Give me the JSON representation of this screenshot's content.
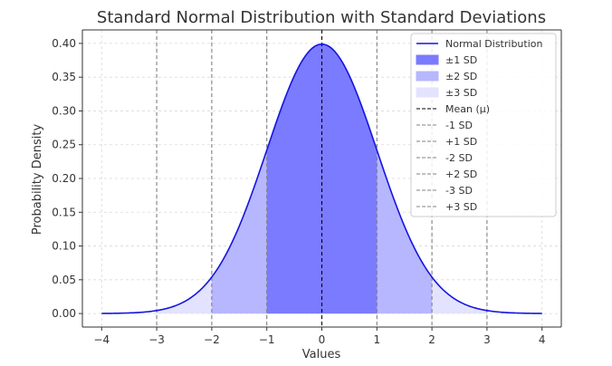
{
  "chart_data": {
    "type": "line",
    "title": "Standard Normal Distribution with Standard Deviations",
    "xlabel": "Values",
    "ylabel": "Probability Density",
    "xlim": [
      -4.35,
      4.35
    ],
    "ylim": [
      -0.02,
      0.42
    ],
    "x_ticks": [
      -4,
      -3,
      -2,
      -1,
      0,
      1,
      2,
      3,
      4
    ],
    "x_tick_labels": [
      "−4",
      "−3",
      "−2",
      "−1",
      "0",
      "1",
      "2",
      "3",
      "4"
    ],
    "y_ticks": [
      0.0,
      0.05,
      0.1,
      0.15,
      0.2,
      0.25,
      0.3,
      0.35,
      0.4
    ],
    "y_tick_labels": [
      "0.00",
      "0.05",
      "0.10",
      "0.15",
      "0.20",
      "0.25",
      "0.30",
      "0.35",
      "0.40"
    ],
    "grid": true,
    "legend_position": "top-right",
    "series": [
      {
        "name": "Normal Distribution",
        "kind": "line",
        "color": "#1515e0",
        "x": [
          -4.0,
          -3.5,
          -3.0,
          -2.5,
          -2.0,
          -1.5,
          -1.0,
          -0.5,
          0.0,
          0.5,
          1.0,
          1.5,
          2.0,
          2.5,
          3.0,
          3.5,
          4.0
        ],
        "y": [
          0.0001,
          0.0009,
          0.0044,
          0.0175,
          0.054,
          0.1295,
          0.242,
          0.3521,
          0.3989,
          0.3521,
          0.242,
          0.1295,
          0.054,
          0.0175,
          0.0044,
          0.0009,
          0.0001
        ]
      }
    ],
    "bands": [
      {
        "name": "±1 SD",
        "from": -1,
        "to": 1,
        "color": "#7b7bff"
      },
      {
        "name": "±2 SD",
        "from": -2,
        "to": 2,
        "color": "#b7b7ff"
      },
      {
        "name": "±3 SD",
        "from": -3,
        "to": 3,
        "color": "#e3e3ff"
      }
    ],
    "vlines": [
      {
        "name": "Mean (μ)",
        "x": 0,
        "color": "#000000"
      },
      {
        "name": "-1 SD",
        "x": -1,
        "color": "#808080"
      },
      {
        "name": "+1 SD",
        "x": 1,
        "color": "#808080"
      },
      {
        "name": "-2 SD",
        "x": -2,
        "color": "#808080"
      },
      {
        "name": "+2 SD",
        "x": 2,
        "color": "#808080"
      },
      {
        "name": "-3 SD",
        "x": -3,
        "color": "#808080"
      },
      {
        "name": "+3 SD",
        "x": 3,
        "color": "#808080"
      }
    ]
  }
}
